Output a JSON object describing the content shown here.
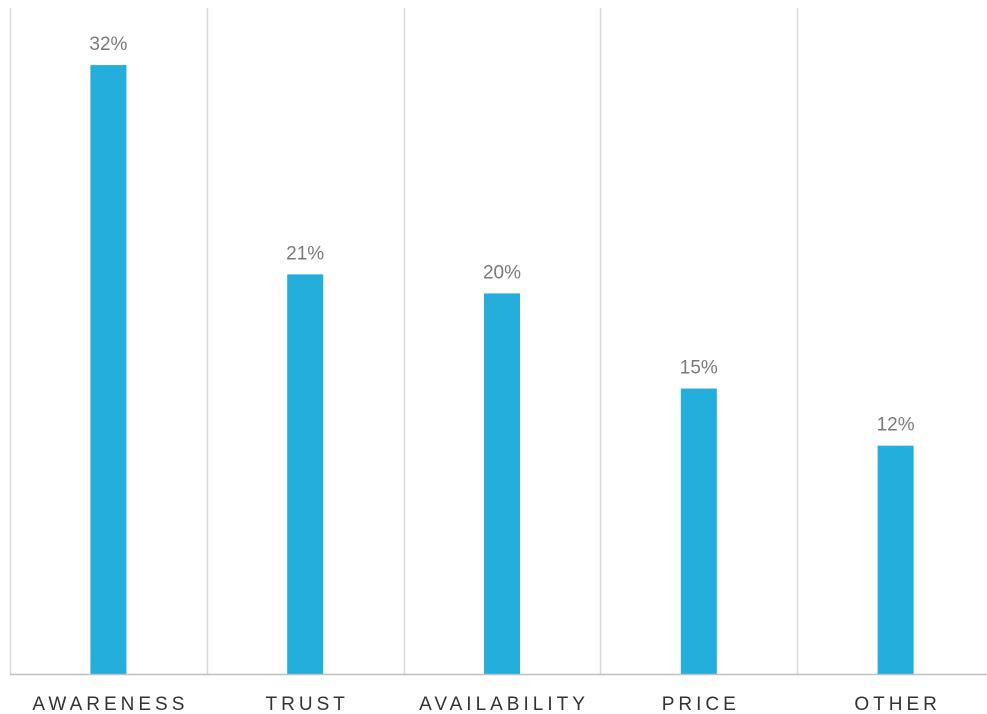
{
  "chart_data": {
    "type": "bar",
    "categories": [
      "AWARENESS",
      "TRUST",
      "AVAILABILITY",
      "PRICE",
      "OTHER"
    ],
    "values": [
      32,
      21,
      20,
      15,
      12
    ],
    "value_labels": [
      "32%",
      "21%",
      "20%",
      "15%",
      "12%"
    ],
    "unit": "%",
    "ylim": [
      0,
      35
    ],
    "grid": "vertical separators between categories",
    "colors": {
      "bar": "#23aedc",
      "value_label": "#7a7a7a",
      "category_label": "#333333",
      "gridline": "#d9d9d9",
      "axis": "#bfbfbf"
    }
  }
}
